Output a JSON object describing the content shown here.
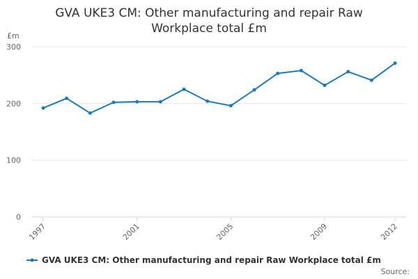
{
  "chart_data": {
    "type": "line",
    "title": "GVA UKE3 CM: Other manufacturing and repair Raw Workplace total £m",
    "y_label": "£m",
    "source": "Source:",
    "x": [
      1997,
      1998,
      1999,
      2000,
      2001,
      2002,
      2003,
      2004,
      2005,
      2006,
      2007,
      2008,
      2009,
      2010,
      2011,
      2012
    ],
    "series": [
      {
        "name": "GVA UKE3 CM: Other manufacturing and repair Raw Workplace total £m",
        "color": "#1f7ab4",
        "values": [
          192,
          209,
          183,
          202,
          203,
          203,
          225,
          204,
          196,
          224,
          253,
          258,
          232,
          256,
          241,
          271
        ]
      }
    ],
    "xlim": [
      1997,
      2012
    ],
    "xticks": [
      1997,
      2001,
      2005,
      2009,
      2012
    ],
    "ylim": [
      0,
      300
    ],
    "yticks": [
      0,
      100,
      200,
      300
    ],
    "grid": true
  }
}
